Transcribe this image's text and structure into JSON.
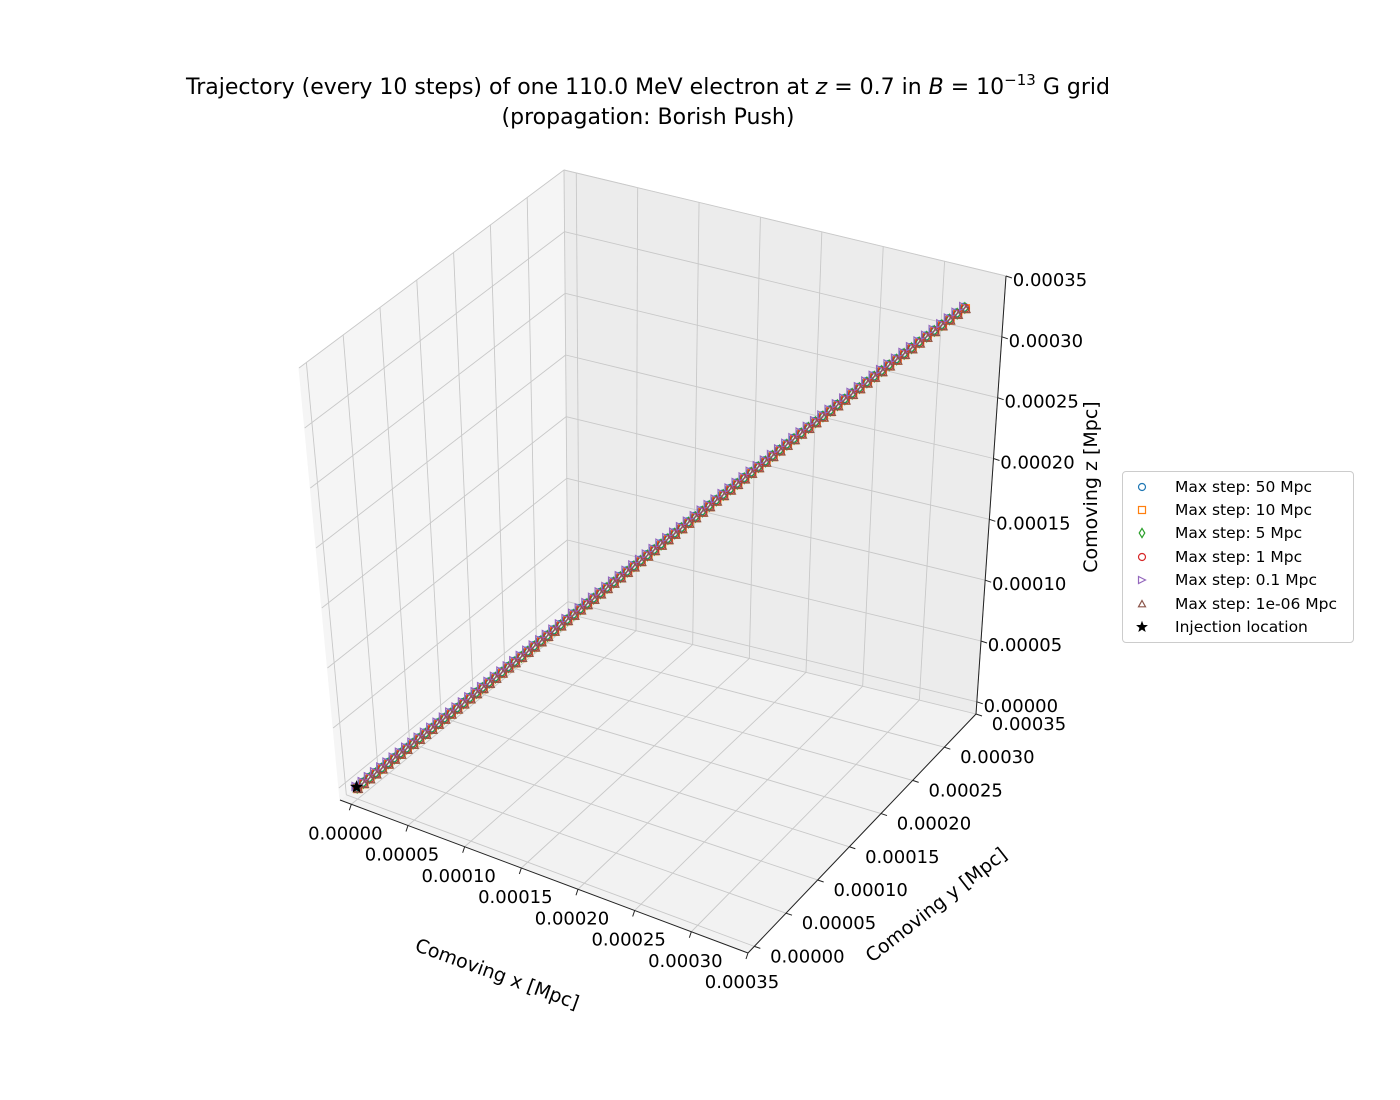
{
  "chart_data": {
    "type": "scatter",
    "projection": "3d",
    "title": "Trajectory (every 10 steps) of one 110.0 MeV electron at z = 0.7 in B = 10⁻¹³ G grid",
    "title_line1_parts": {
      "prefix": "Trajectory (every 10 steps) of one 110.0 MeV electron at ",
      "zvar": "z",
      "zeq": " = 0.7 in ",
      "bvar": "B",
      "beq": " = 10",
      "bexp": "−13",
      "suffix": " G grid"
    },
    "subtitle": "(propagation: Borish Push)",
    "xlabel": "Comoving x [Mpc]",
    "ylabel": "Comoving y [Mpc]",
    "zlabel": "Comoving z [Mpc]",
    "xlim": [
      -1e-05,
      0.00035
    ],
    "ylim": [
      -1e-05,
      0.00035
    ],
    "zlim": [
      -1e-05,
      0.00035
    ],
    "xticks": [
      "0.00000",
      "0.00005",
      "0.00010",
      "0.00015",
      "0.00020",
      "0.00025",
      "0.00030",
      "0.00035"
    ],
    "yticks": [
      "0.00000",
      "0.00005",
      "0.00010",
      "0.00015",
      "0.00020",
      "0.00025",
      "0.00030",
      "0.00035"
    ],
    "zticks": [
      "0.00000",
      "0.00005",
      "0.00010",
      "0.00015",
      "0.00020",
      "0.00025",
      "0.00030",
      "0.00035"
    ],
    "grid": true,
    "legend_position": "center right, outside axes",
    "series": [
      {
        "name": "Max step: 50 Mpc",
        "marker": "o",
        "color": "#1f77b4",
        "start": [
          0,
          0,
          0
        ],
        "end": [
          0.00033,
          0.00033,
          0.00033
        ],
        "points": 90
      },
      {
        "name": "Max step: 10 Mpc",
        "marker": "s",
        "color": "#ff7f0e",
        "start": [
          0,
          0,
          0
        ],
        "end": [
          0.00033,
          0.00033,
          0.00033
        ],
        "points": 90
      },
      {
        "name": "Max step: 5 Mpc",
        "marker": "d",
        "color": "#2ca02c",
        "start": [
          0,
          0,
          0
        ],
        "end": [
          0.00033,
          0.00033,
          0.00033
        ],
        "points": 90
      },
      {
        "name": "Max step: 1 Mpc",
        "marker": "o",
        "color": "#d62728",
        "start": [
          0,
          0,
          0
        ],
        "end": [
          0.00033,
          0.00033,
          0.00033
        ],
        "points": 90
      },
      {
        "name": "Max step: 0.1 Mpc",
        "marker": ">",
        "color": "#9467bd",
        "start": [
          0,
          0,
          0
        ],
        "end": [
          0.00033,
          0.00033,
          0.00033
        ],
        "points": 90
      },
      {
        "name": "Max step: 1e-06 Mpc",
        "marker": "^",
        "color": "#8c564b",
        "start": [
          0,
          0,
          0
        ],
        "end": [
          0.00033,
          0.00033,
          0.00033
        ],
        "points": 90
      }
    ],
    "injection": {
      "name": "Injection location",
      "marker": "*",
      "color": "#000000",
      "point": [
        0,
        0,
        0
      ]
    }
  }
}
